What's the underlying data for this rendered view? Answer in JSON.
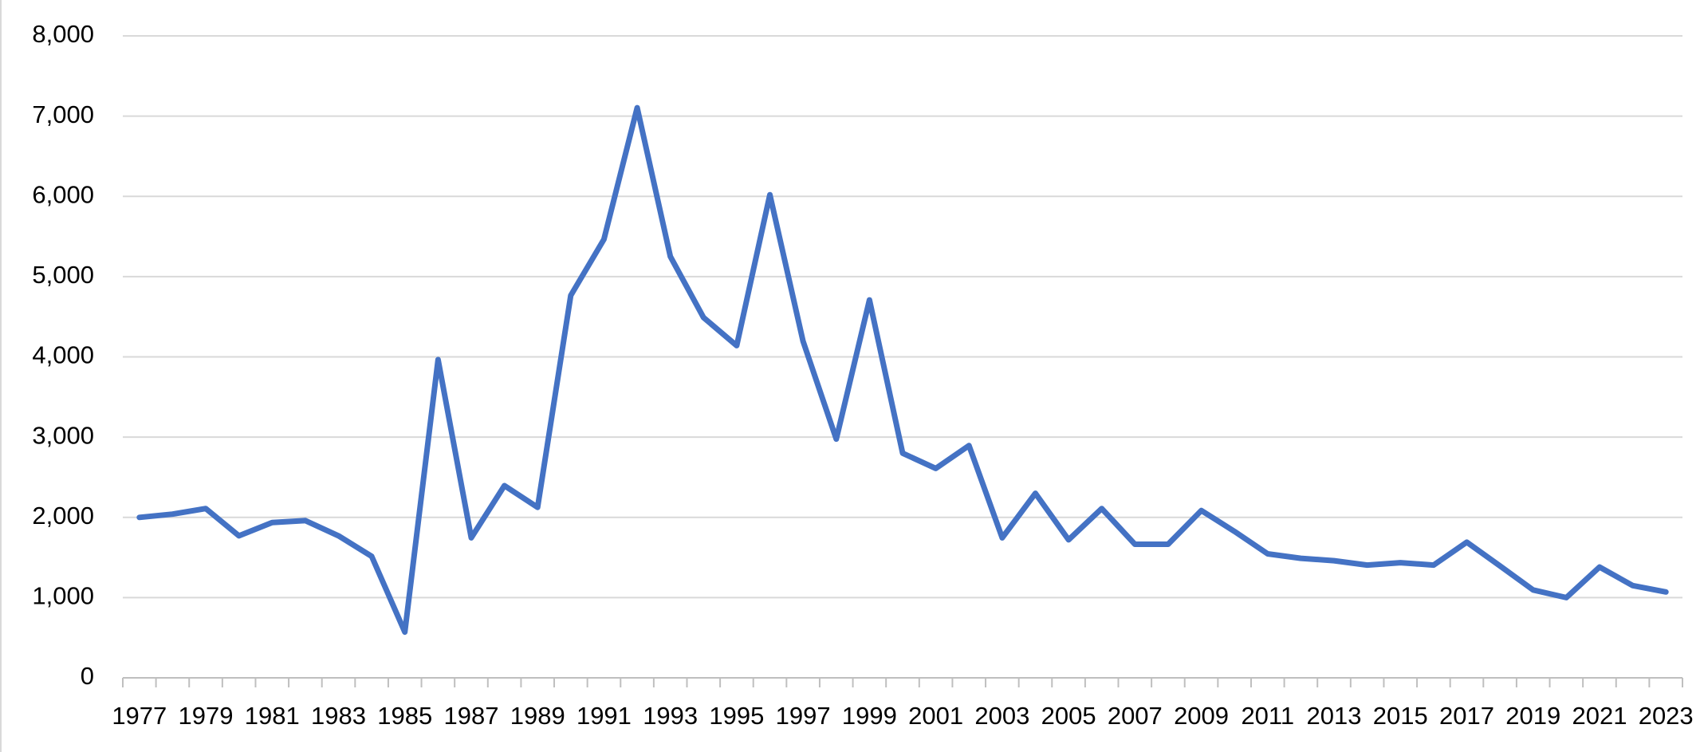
{
  "chart_data": {
    "type": "line",
    "categories": [
      "1977",
      null,
      "1979",
      null,
      "1981",
      null,
      "1983",
      null,
      "1985",
      null,
      "1987",
      null,
      "1989",
      null,
      "1991",
      null,
      "1993",
      null,
      "1995",
      null,
      "1997",
      null,
      "1999",
      null,
      "2001",
      null,
      "2003",
      null,
      "2005",
      null,
      "2007",
      null,
      "2009",
      null,
      "2011",
      null,
      "2013",
      null,
      "2015",
      null,
      "2017",
      null,
      "2019",
      null,
      "2021",
      null,
      "2023"
    ],
    "series": [
      {
        "color": "#4472c4",
        "values": [
          2000,
          2040,
          2110,
          1770,
          1935,
          1960,
          1770,
          1515,
          570,
          3965,
          1745,
          2395,
          2125,
          4765,
          5465,
          7105,
          5250,
          4490,
          4140,
          6020,
          4195,
          2975,
          4710,
          2800,
          2610,
          2895,
          1745,
          2300,
          1720,
          2110,
          1665,
          1665,
          2085,
          1825,
          1545,
          1490,
          1460,
          1405,
          1435,
          1405,
          1690,
          1395,
          1095,
          1000,
          1380,
          1150,
          1070
        ]
      }
    ],
    "ylim": [
      0,
      8000
    ],
    "yticks": [
      0,
      {
        "value": 1000,
        "label": "1,000"
      },
      {
        "value": 2000,
        "label": "2,000"
      },
      {
        "value": 3000,
        "label": "3,000"
      },
      {
        "value": 4000,
        "label": "4,000"
      },
      {
        "value": 5000,
        "label": "5,000"
      },
      {
        "value": 6000,
        "label": "6,000"
      },
      {
        "value": 7000,
        "label": "7,000"
      },
      {
        "value": 8000,
        "label": "8,000"
      }
    ],
    "grid": true
  }
}
